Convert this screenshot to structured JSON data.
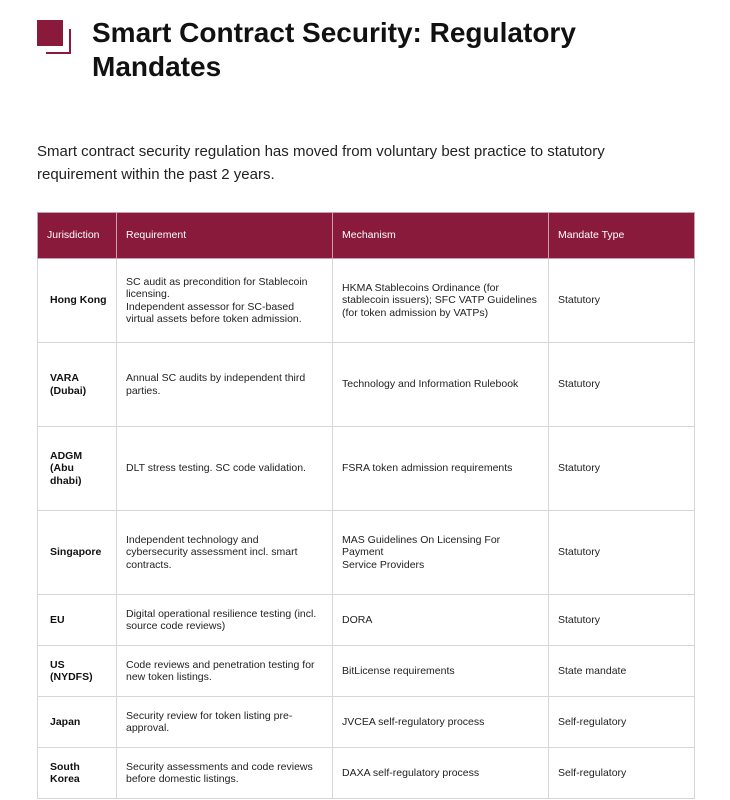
{
  "title": "Smart Contract Security: Regulatory Mandates",
  "intro": "Smart contract security regulation has moved from voluntary best practice to statutory requirement within the past 2 years.",
  "brand_color": "#8a1a3c",
  "table": {
    "headers": [
      "Jurisdiction",
      "Requirement",
      "Mechanism",
      "Mandate Type"
    ],
    "rows": [
      {
        "jurisdiction": "Hong Kong",
        "requirement": "SC audit as precondition for Stablecoin licensing.\nIndependent assessor for SC-based virtual assets before token admission.",
        "mechanism": "HKMA Stablecoins Ordinance (for stablecoin issuers); SFC VATP Guidelines (for token admission by VATPs)",
        "type": "Statutory"
      },
      {
        "jurisdiction": "VARA (Dubai)",
        "requirement": "Annual SC audits by independent third parties.",
        "mechanism": "Technology and Information Rulebook",
        "type": "Statutory"
      },
      {
        "jurisdiction": "ADGM (Abu dhabi)",
        "requirement": "DLT stress testing. SC code validation.",
        "mechanism": "FSRA token admission requirements",
        "type": "Statutory"
      },
      {
        "jurisdiction": "Singapore",
        "requirement": "Independent technology and cybersecurity assessment incl. smart contracts.",
        "mechanism": "MAS Guidelines On Licensing For Payment\nService Providers",
        "type": "Statutory"
      },
      {
        "jurisdiction": "EU",
        "requirement": "Digital operational resilience testing (incl. source code reviews)",
        "mechanism": "DORA",
        "type": "Statutory"
      },
      {
        "jurisdiction": "US (NYDFS)",
        "requirement": "Code reviews and penetration testing for new token listings.",
        "mechanism": "BitLicense requirements",
        "type": "State mandate"
      },
      {
        "jurisdiction": "Japan",
        "requirement": "Security review for token listing pre-approval.",
        "mechanism": "JVCEA self-regulatory process",
        "type": "Self-regulatory"
      },
      {
        "jurisdiction": "South Korea",
        "requirement": "Security assessments and code reviews before domestic listings.",
        "mechanism": "DAXA self-regulatory process",
        "type": "Self-regulatory"
      }
    ]
  }
}
